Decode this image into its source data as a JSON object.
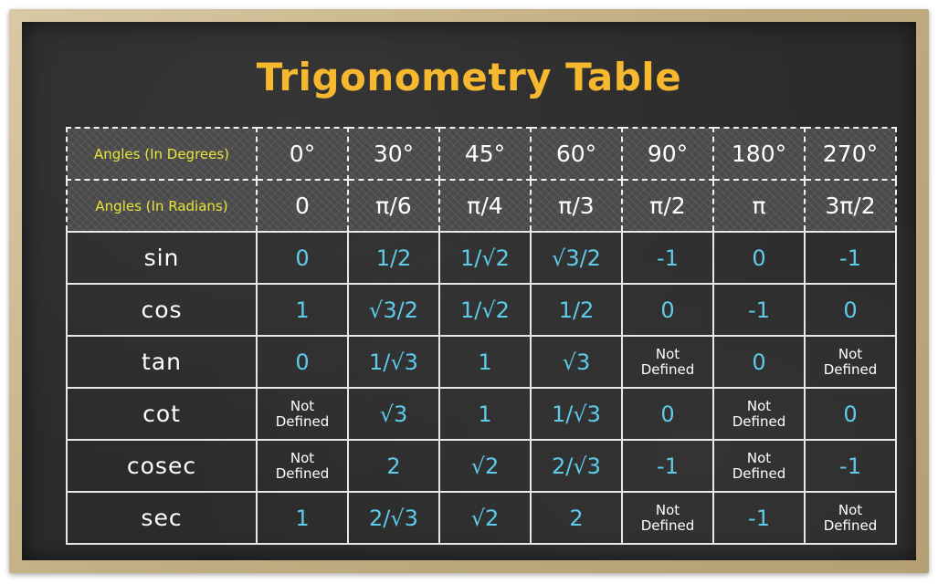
{
  "title": "Trigonometry Table",
  "colors": {
    "title": "#f5b82e",
    "header_label": "#e8e43a",
    "value": "#5ecbe8",
    "board": "#2b2b2b",
    "frame": "#c2ae84"
  },
  "header": {
    "degrees_label": "Angles (In Degrees)",
    "radians_label": "Angles (In Radians)",
    "degrees": [
      "0°",
      "30°",
      "45°",
      "60°",
      "90°",
      "180°",
      "270°"
    ],
    "radians": [
      "0",
      "π/6",
      "π/4",
      "π/3",
      "π/2",
      "π",
      "3π/2"
    ]
  },
  "rows": [
    {
      "name": "sin",
      "values": [
        "0",
        "1/2",
        "1/√2",
        "√3/2",
        "-1",
        "0",
        "-1"
      ]
    },
    {
      "name": "cos",
      "values": [
        "1",
        "√3/2",
        "1/√2",
        "1/2",
        "0",
        "-1",
        "0"
      ]
    },
    {
      "name": "tan",
      "values": [
        "0",
        "1/√3",
        "1",
        "√3",
        "Not Defined",
        "0",
        "Not Defined"
      ]
    },
    {
      "name": "cot",
      "values": [
        "Not Defined",
        "√3",
        "1",
        "1/√3",
        "0",
        "Not Defined",
        "0"
      ]
    },
    {
      "name": "cosec",
      "values": [
        "Not Defined",
        "2",
        "√2",
        "2/√3",
        "-1",
        "Not Defined",
        "-1"
      ]
    },
    {
      "name": "sec",
      "values": [
        "1",
        "2/√3",
        "√2",
        "2",
        "Not Defined",
        "-1",
        "Not Defined"
      ]
    }
  ],
  "not_defined": {
    "line1": "Not",
    "line2": "Defined"
  }
}
